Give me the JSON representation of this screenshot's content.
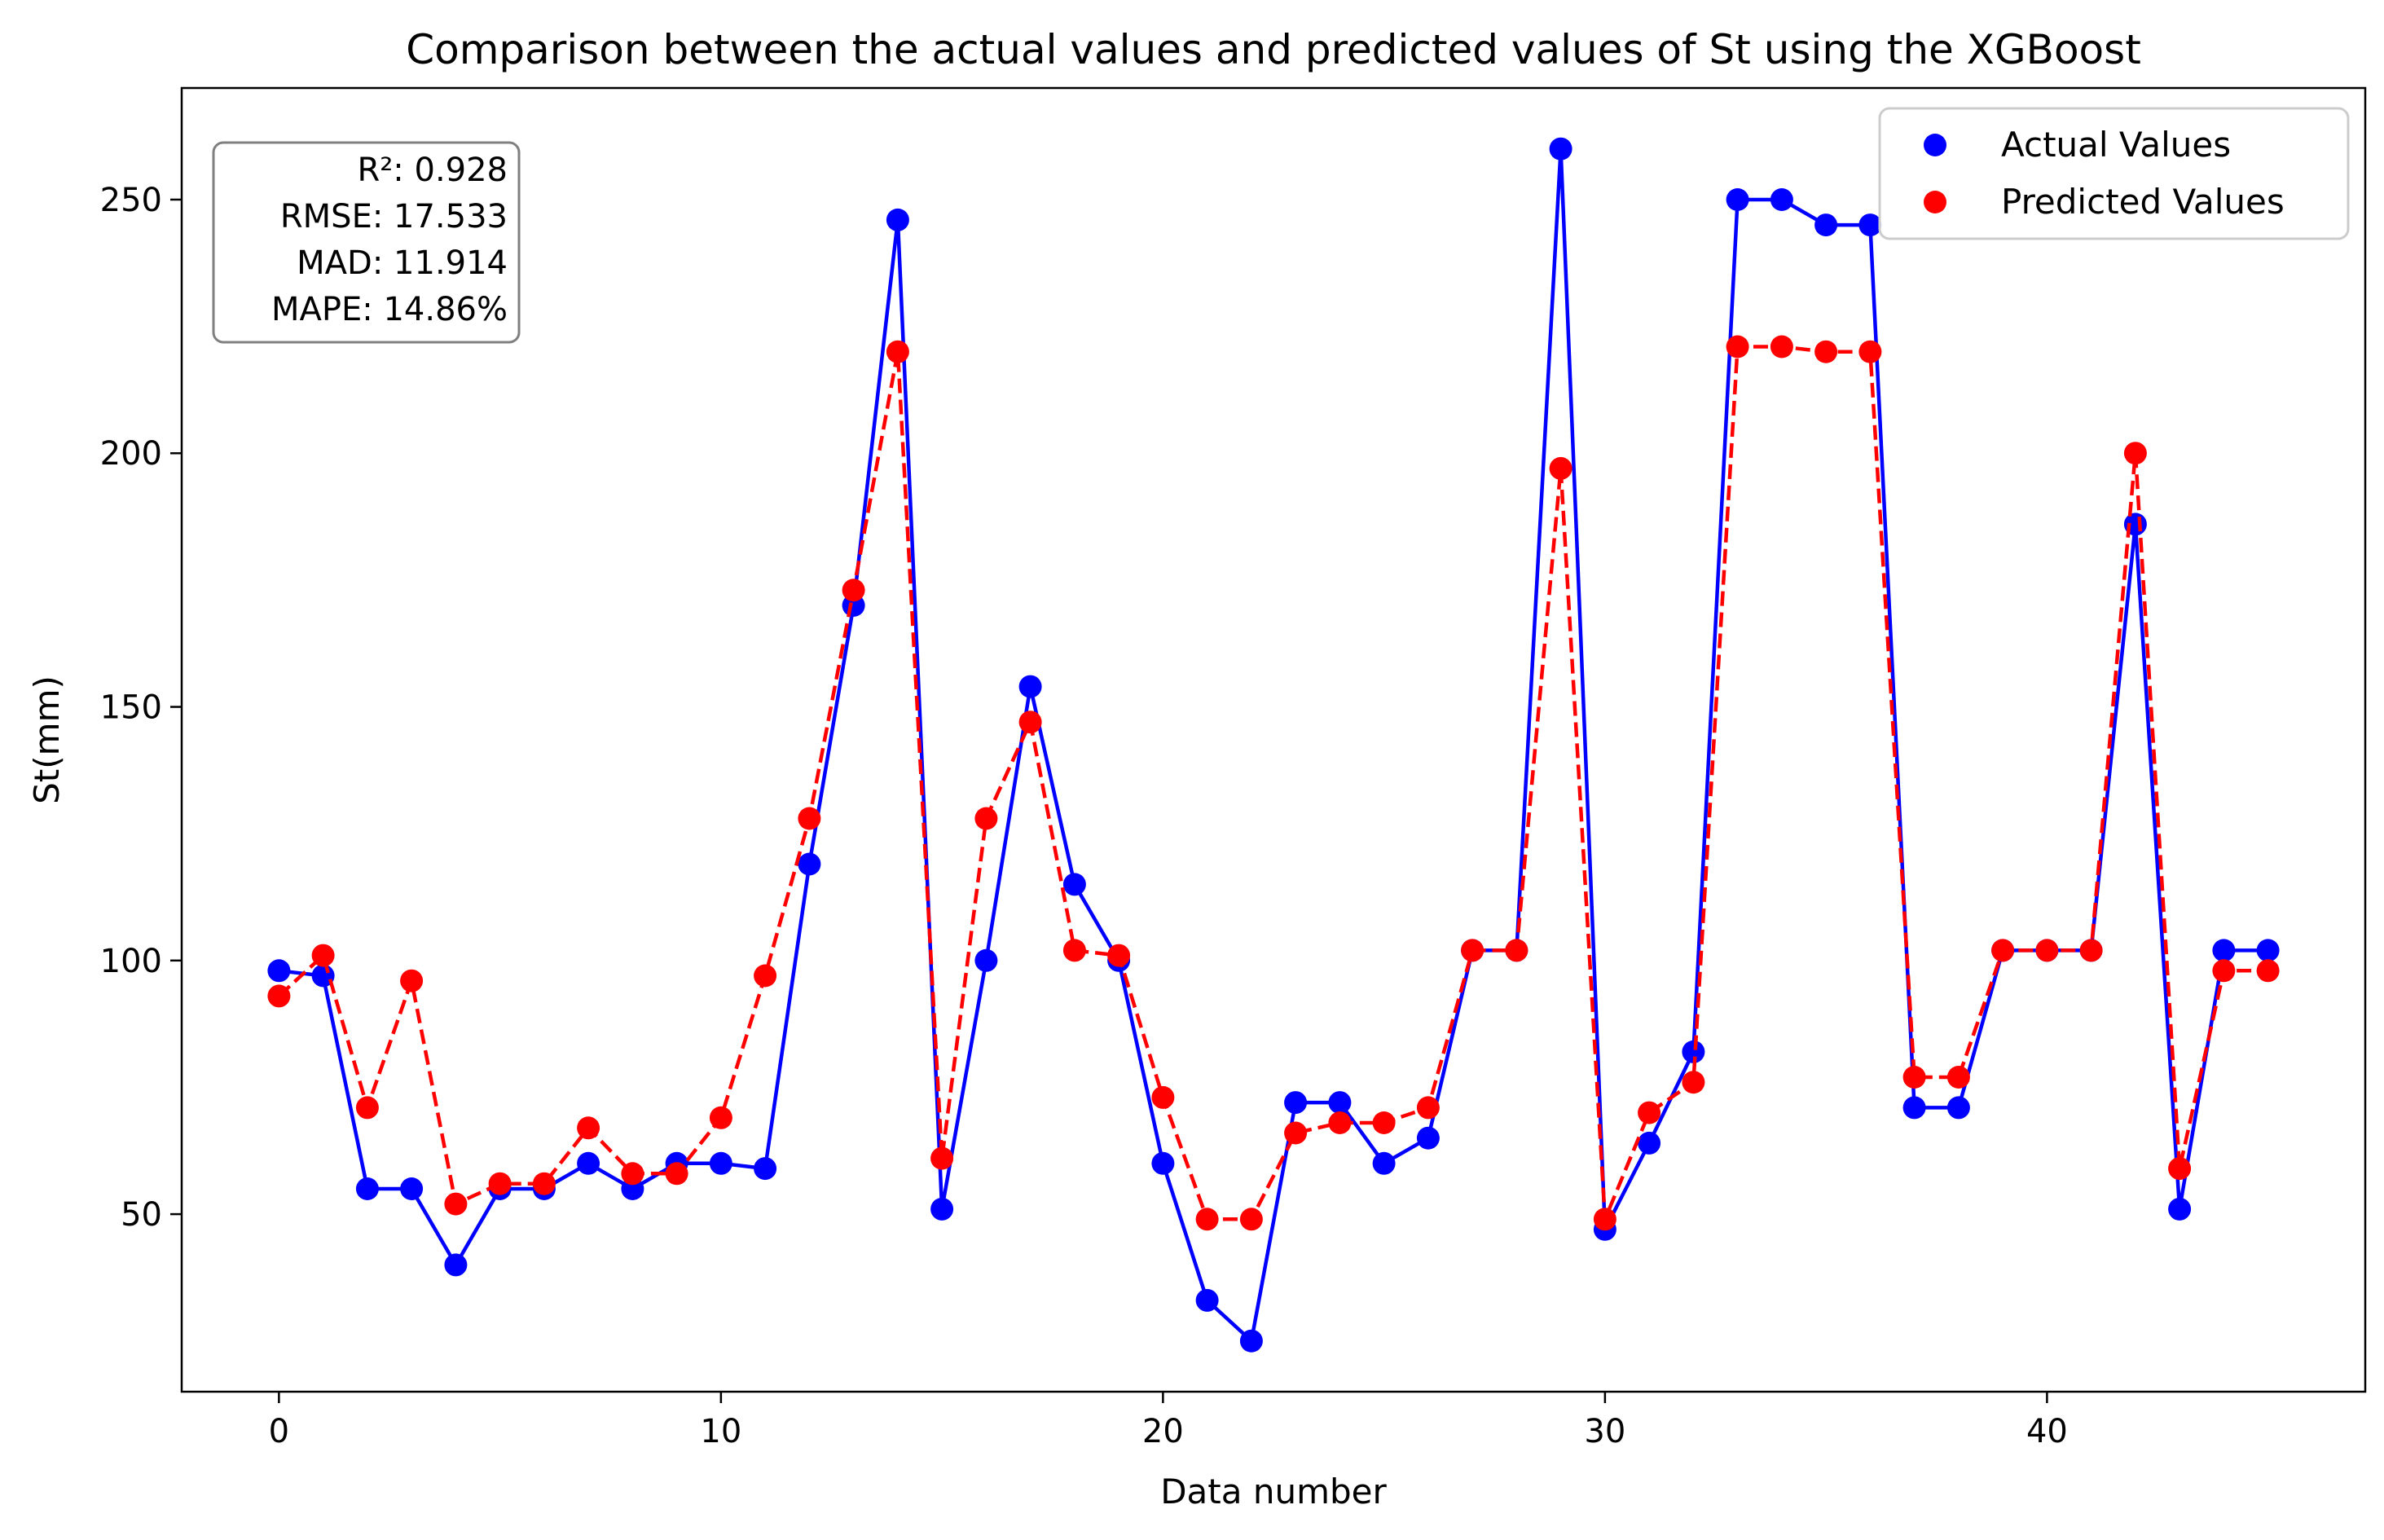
{
  "chart_data": {
    "type": "line",
    "title": "Comparison between the actual values and predicted values of St using the XGBoost",
    "xlabel": "Data number",
    "ylabel": "St(mm)",
    "xlim": [
      -2.2,
      47.2
    ],
    "ylim": [
      15,
      272
    ],
    "xticks": [
      0,
      10,
      20,
      30,
      40
    ],
    "yticks": [
      50,
      100,
      150,
      200,
      250
    ],
    "grid": false,
    "legend_position": "top-right",
    "x": [
      0,
      1,
      2,
      3,
      4,
      5,
      6,
      7,
      8,
      9,
      10,
      11,
      12,
      13,
      14,
      15,
      16,
      17,
      18,
      19,
      20,
      21,
      22,
      23,
      24,
      25,
      26,
      27,
      28,
      29,
      30,
      31,
      32,
      33,
      34,
      35,
      36,
      37,
      38,
      39,
      40,
      41,
      42,
      43,
      44,
      45
    ],
    "series": [
      {
        "name": "Actual Values",
        "color": "#0000ff",
        "line_style": "solid",
        "values": [
          98,
          97,
          55,
          55,
          40,
          55,
          55,
          60,
          55,
          60,
          60,
          59,
          119,
          170,
          246,
          51,
          100,
          154,
          115,
          100,
          60,
          33,
          25,
          72,
          72,
          60,
          65,
          102,
          102,
          260,
          47,
          64,
          82,
          250,
          250,
          245,
          245,
          71,
          71,
          102,
          102,
          102,
          186,
          51,
          102,
          102
        ]
      },
      {
        "name": "Predicted Values",
        "color": "#ff0000",
        "line_style": "dashed",
        "values": [
          93,
          101,
          71,
          96,
          52,
          56,
          56,
          67,
          58,
          58,
          69,
          97,
          128,
          173,
          220,
          61,
          128,
          147,
          102,
          101,
          73,
          49,
          49,
          66,
          68,
          68,
          71,
          102,
          102,
          197,
          49,
          70,
          76,
          221,
          221,
          220,
          220,
          77,
          77,
          102,
          102,
          102,
          200,
          59,
          98,
          98
        ]
      }
    ],
    "metrics": [
      "R²: 0.928",
      "RMSE: 17.533",
      "MAD: 11.914",
      "MAPE: 14.86%"
    ]
  }
}
